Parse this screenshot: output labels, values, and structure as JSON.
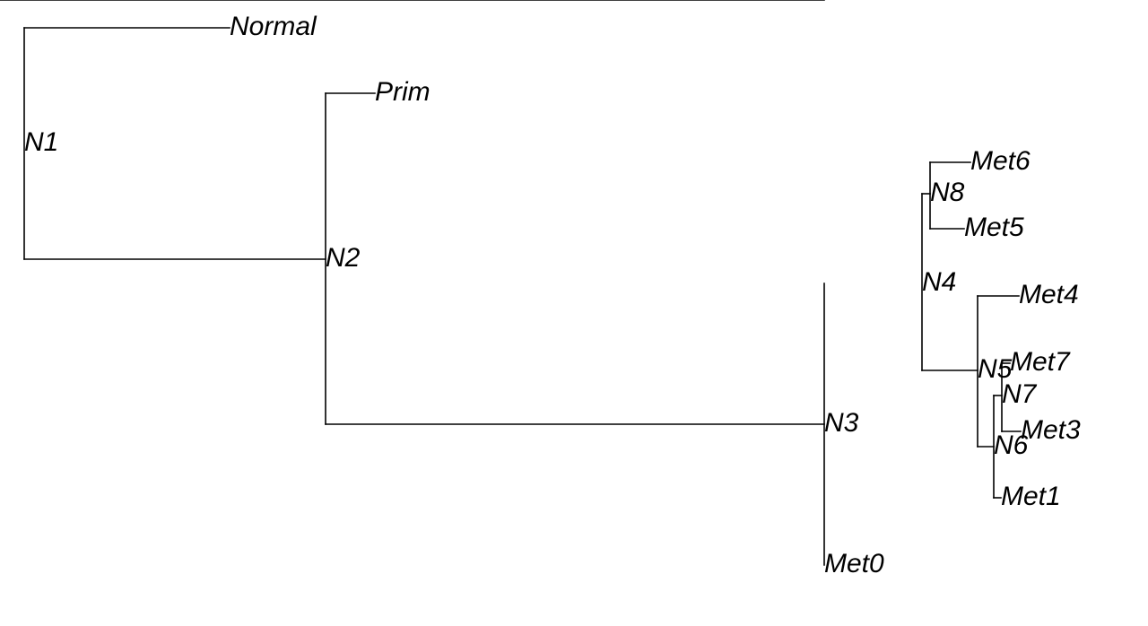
{
  "diagram": {
    "type": "phylogenetic-tree",
    "style": {
      "line_color": "#000000",
      "background": "#ffffff",
      "label_font_style": "italic"
    },
    "nodes": [
      {
        "id": "N1",
        "label": "N1",
        "kind": "internal"
      },
      {
        "id": "Normal",
        "label": "Normal",
        "kind": "leaf"
      },
      {
        "id": "N2",
        "label": "N2",
        "kind": "internal"
      },
      {
        "id": "Prim",
        "label": "Prim",
        "kind": "leaf"
      },
      {
        "id": "N3",
        "label": "N3",
        "kind": "internal"
      },
      {
        "id": "N4",
        "label": "N4",
        "kind": "internal"
      },
      {
        "id": "N8",
        "label": "N8",
        "kind": "internal"
      },
      {
        "id": "Met6",
        "label": "Met6",
        "kind": "leaf"
      },
      {
        "id": "Met5",
        "label": "Met5",
        "kind": "leaf"
      },
      {
        "id": "N5",
        "label": "N5",
        "kind": "internal"
      },
      {
        "id": "Met4",
        "label": "Met4",
        "kind": "leaf"
      },
      {
        "id": "N6",
        "label": "N6",
        "kind": "internal"
      },
      {
        "id": "N7",
        "label": "N7",
        "kind": "internal"
      },
      {
        "id": "Met7",
        "label": "Met7",
        "kind": "leaf"
      },
      {
        "id": "Met3",
        "label": "Met3",
        "kind": "leaf"
      },
      {
        "id": "Met1",
        "label": "Met1",
        "kind": "leaf"
      },
      {
        "id": "Met0",
        "label": "Met0",
        "kind": "leaf"
      }
    ],
    "edges": [
      {
        "parent": "N1",
        "child": "Normal"
      },
      {
        "parent": "N1",
        "child": "N2"
      },
      {
        "parent": "N2",
        "child": "Prim"
      },
      {
        "parent": "N2",
        "child": "N3"
      },
      {
        "parent": "N3",
        "child": "N4"
      },
      {
        "parent": "N3",
        "child": "Met0"
      },
      {
        "parent": "N4",
        "child": "N8"
      },
      {
        "parent": "N4",
        "child": "N5"
      },
      {
        "parent": "N8",
        "child": "Met6"
      },
      {
        "parent": "N8",
        "child": "Met5"
      },
      {
        "parent": "N5",
        "child": "Met4"
      },
      {
        "parent": "N5",
        "child": "N6"
      },
      {
        "parent": "N6",
        "child": "N7"
      },
      {
        "parent": "N6",
        "child": "Met1"
      },
      {
        "parent": "N7",
        "child": "Met7"
      },
      {
        "parent": "N7",
        "child": "Met3"
      }
    ]
  }
}
